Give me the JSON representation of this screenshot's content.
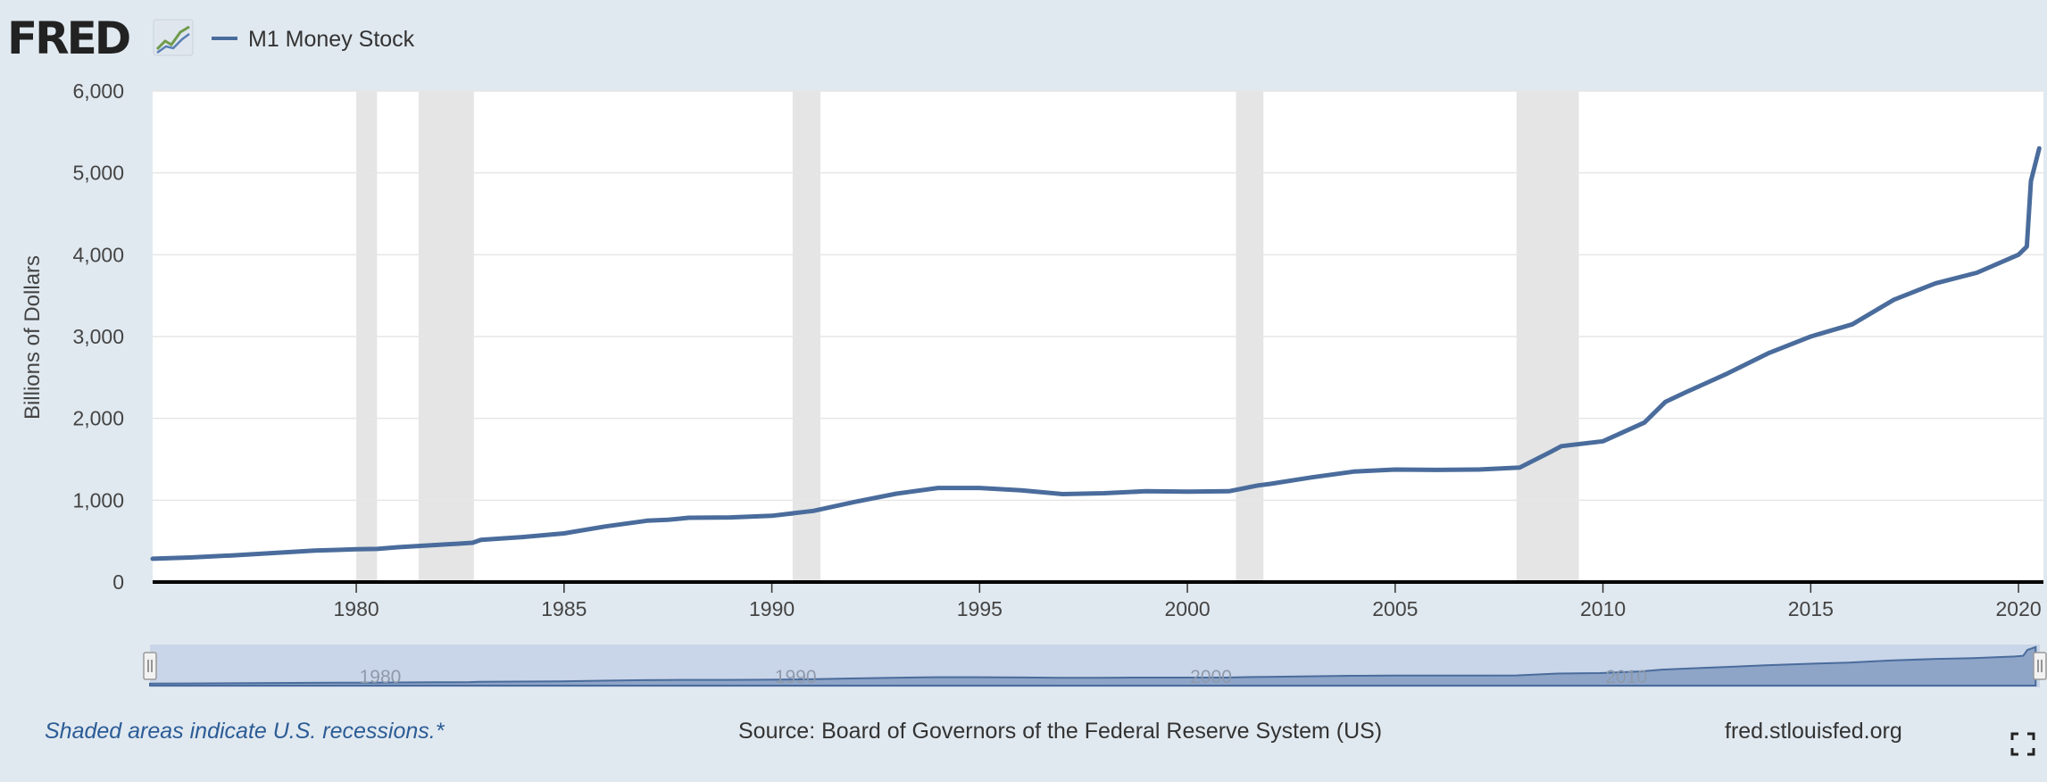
{
  "header": {
    "logo_text": "FRED",
    "logo_icon": "line-chart-icon",
    "legend_label": "M1 Money Stock"
  },
  "footer": {
    "recession_note": "Shaded areas indicate U.S. recessions.*",
    "source": "Source: Board of Governors of the Federal Reserve System (US)",
    "site": "fred.stlouisfed.org",
    "fullscreen_icon": "fullscreen-icon"
  },
  "colors": {
    "background": "#e1e9f0",
    "plot_background": "#ffffff",
    "series": "#4a6c9c",
    "recession": "#e5e5e5",
    "navigator_fill": "#b8c8e0",
    "navigator_line": "#4a6c9c",
    "grid": "#e6e6e6",
    "axis": "#000000",
    "tick_text": "#444444",
    "footer_note": "#2b5c96"
  },
  "chart_data": {
    "type": "line",
    "title": "",
    "xlabel": "",
    "ylabel": "Billions of Dollars",
    "xlim": [
      1975.1,
      2020.6
    ],
    "ylim": [
      0,
      6000
    ],
    "y_ticks": [
      0,
      1000,
      2000,
      3000,
      4000,
      5000,
      6000
    ],
    "y_tick_labels": [
      "0",
      "1,000",
      "2,000",
      "3,000",
      "4,000",
      "5,000",
      "6,000"
    ],
    "x_ticks": [
      1980,
      1985,
      1990,
      1995,
      2000,
      2005,
      2010,
      2015,
      2020
    ],
    "x_tick_labels": [
      "1980",
      "1985",
      "1990",
      "1995",
      "2000",
      "2005",
      "2010",
      "2015",
      "2020"
    ],
    "grid": "horizontal",
    "legend": "top-left",
    "recessions": [
      [
        1980.0,
        1980.5
      ],
      [
        1981.5,
        1982.83
      ],
      [
        1990.5,
        1991.17
      ],
      [
        2001.17,
        2001.83
      ],
      [
        2007.92,
        2009.42
      ]
    ],
    "navigator_ticks": [
      "1980",
      "1990",
      "2000",
      "2010"
    ],
    "series": [
      {
        "name": "M1 Money Stock",
        "x": [
          1975.1,
          1976,
          1977,
          1978,
          1979,
          1980,
          1980.5,
          1981,
          1982,
          1982.8,
          1983,
          1984,
          1985,
          1986,
          1987,
          1987.5,
          1988,
          1989,
          1990,
          1991,
          1992,
          1993,
          1994,
          1995,
          1996,
          1997,
          1998,
          1999,
          2000,
          2001,
          2001.7,
          2002,
          2003,
          2004,
          2005,
          2006,
          2007,
          2008,
          2008.7,
          2009,
          2010,
          2011,
          2011.5,
          2012,
          2013,
          2014,
          2015,
          2016,
          2017,
          2018,
          2019,
          2020,
          2020.2,
          2020.3,
          2020.5
        ],
        "values": [
          285,
          300,
          325,
          355,
          385,
          400,
          405,
          425,
          455,
          480,
          515,
          550,
          595,
          680,
          750,
          760,
          785,
          790,
          810,
          870,
          980,
          1080,
          1150,
          1150,
          1120,
          1075,
          1085,
          1110,
          1105,
          1110,
          1180,
          1200,
          1280,
          1350,
          1375,
          1370,
          1375,
          1400,
          1580,
          1660,
          1720,
          1950,
          2200,
          2320,
          2550,
          2800,
          3000,
          3150,
          3450,
          3650,
          3780,
          4000,
          4100,
          4900,
          5300
        ]
      }
    ]
  }
}
